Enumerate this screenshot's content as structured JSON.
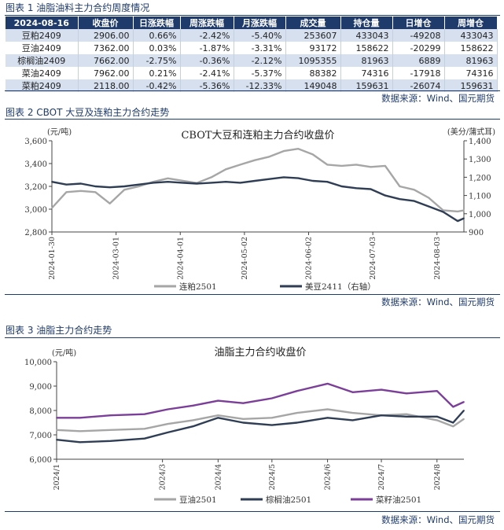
{
  "table1": {
    "caption": "图表 1 油脂油料主力合约周度情况",
    "headers": [
      "2024-08-16",
      "收盘价",
      "日涨跌幅",
      "周涨跌幅",
      "月涨跌幅",
      "成交量",
      "持仓量",
      "日增仓",
      "周增仓"
    ],
    "rows": [
      [
        "豆粕2409",
        "2906.00",
        "0.66%",
        "-2.42%",
        "-5.40%",
        "253607",
        "433043",
        "-49208",
        "433043"
      ],
      [
        "豆油2409",
        "7362.00",
        "0.03%",
        "-1.87%",
        "-3.31%",
        "93172",
        "158622",
        "-20299",
        "158622"
      ],
      [
        "棕榈油2409",
        "7662.00",
        "-2.75%",
        "-0.36%",
        "-2.12%",
        "1095355",
        "81963",
        "6889",
        "81963"
      ],
      [
        "菜油2409",
        "7962.00",
        "0.21%",
        "-2.41%",
        "-5.37%",
        "88382",
        "74316",
        "-17918",
        "74316"
      ],
      [
        "菜粕2409",
        "2118.00",
        "-0.42%",
        "-5.36%",
        "-12.33%",
        "149048",
        "159631",
        "-26074",
        "159631"
      ]
    ],
    "source": "数据来源：Wind、国元期货"
  },
  "chart2": {
    "caption": "图表 2 CBOT 大豆及连粕主力合约走势",
    "source": "数据来源：Wind、国元期货"
  },
  "chart3": {
    "caption": "图表 3 油脂主力合约走势",
    "source": "数据来源：Wind、国元期货"
  },
  "chart_data": [
    {
      "type": "line",
      "title": "CBOT大豆和连粕主力合约收盘价",
      "ylabel": "(元/吨)",
      "y2label": "(美分/蒲式耳)",
      "ylim": [
        2800,
        3600
      ],
      "y2lim": [
        900,
        1400
      ],
      "yticks": [
        "2,800",
        "3,000",
        "3,200",
        "3,400",
        "3,600"
      ],
      "y2ticks": [
        "900",
        "1,000",
        "1,100",
        "1,200",
        "1,300",
        "1,400"
      ],
      "xticks": [
        "2024-01-30",
        "2024-03-01",
        "2024-04-01",
        "2024-05-02",
        "2024-06-02",
        "2024-07-03",
        "2024-08-03"
      ],
      "x_range": [
        "2024-01-30",
        "2024-08-16"
      ],
      "grid": false,
      "legend": "bottom",
      "series": [
        {
          "name": "连粕2501",
          "axis": "left",
          "color": "#a6a6a6",
          "x": [
            "2024-01-30",
            "2024-02-06",
            "2024-02-13",
            "2024-02-20",
            "2024-02-27",
            "2024-03-05",
            "2024-03-12",
            "2024-03-19",
            "2024-03-26",
            "2024-04-02",
            "2024-04-09",
            "2024-04-16",
            "2024-04-23",
            "2024-04-30",
            "2024-05-07",
            "2024-05-14",
            "2024-05-21",
            "2024-05-28",
            "2024-06-04",
            "2024-06-11",
            "2024-06-18",
            "2024-06-25",
            "2024-07-02",
            "2024-07-09",
            "2024-07-16",
            "2024-07-23",
            "2024-07-30",
            "2024-08-06",
            "2024-08-13",
            "2024-08-16"
          ],
          "values": [
            3010,
            3150,
            3160,
            3150,
            3050,
            3170,
            3200,
            3240,
            3270,
            3250,
            3230,
            3280,
            3350,
            3390,
            3430,
            3460,
            3510,
            3530,
            3480,
            3390,
            3380,
            3390,
            3370,
            3380,
            3200,
            3170,
            3100,
            2990,
            2980,
            2990
          ]
        },
        {
          "name": "美豆2411（右轴）",
          "axis": "right",
          "color": "#2f3e55",
          "x": [
            "2024-01-30",
            "2024-02-06",
            "2024-02-13",
            "2024-02-20",
            "2024-02-27",
            "2024-03-05",
            "2024-03-12",
            "2024-03-19",
            "2024-03-26",
            "2024-04-02",
            "2024-04-09",
            "2024-04-16",
            "2024-04-23",
            "2024-04-30",
            "2024-05-07",
            "2024-05-14",
            "2024-05-21",
            "2024-05-28",
            "2024-06-04",
            "2024-06-11",
            "2024-06-18",
            "2024-06-25",
            "2024-07-02",
            "2024-07-09",
            "2024-07-16",
            "2024-07-23",
            "2024-07-30",
            "2024-08-06",
            "2024-08-13",
            "2024-08-16"
          ],
          "values": [
            1175,
            1160,
            1165,
            1150,
            1145,
            1150,
            1160,
            1170,
            1175,
            1170,
            1165,
            1170,
            1175,
            1170,
            1180,
            1190,
            1200,
            1195,
            1180,
            1175,
            1150,
            1140,
            1135,
            1100,
            1080,
            1070,
            1040,
            1010,
            960,
            975
          ]
        }
      ]
    },
    {
      "type": "line",
      "title": "油脂主力合约收盘价",
      "ylabel": "(元/吨)",
      "ylim": [
        6000,
        10000
      ],
      "yticks": [
        "6,000",
        "7,000",
        "8,000",
        "9,000",
        "10,000"
      ],
      "xticks": [
        "2024/1",
        "2024/3",
        "2024/4",
        "2024/5",
        "2024/6",
        "2024/7",
        "2024/8"
      ],
      "x_range": [
        "2024-01-02",
        "2024-08-16"
      ],
      "grid": false,
      "legend": "bottom",
      "series": [
        {
          "name": "豆油2501",
          "color": "#a6a6a6",
          "x": [
            "2024-01-02",
            "2024-01-15",
            "2024-02-01",
            "2024-02-20",
            "2024-03-04",
            "2024-03-18",
            "2024-04-01",
            "2024-04-15",
            "2024-05-01",
            "2024-05-15",
            "2024-06-01",
            "2024-06-15",
            "2024-07-01",
            "2024-07-15",
            "2024-08-01",
            "2024-08-10",
            "2024-08-16"
          ],
          "values": [
            7200,
            7150,
            7200,
            7250,
            7450,
            7600,
            7800,
            7650,
            7700,
            7900,
            8050,
            7900,
            7800,
            7850,
            7600,
            7350,
            7650
          ]
        },
        {
          "name": "棕榈油2501",
          "color": "#2f3e55",
          "x": [
            "2024-01-02",
            "2024-01-15",
            "2024-02-01",
            "2024-02-20",
            "2024-03-04",
            "2024-03-18",
            "2024-04-01",
            "2024-04-15",
            "2024-05-01",
            "2024-05-15",
            "2024-06-01",
            "2024-06-15",
            "2024-07-01",
            "2024-07-15",
            "2024-08-01",
            "2024-08-10",
            "2024-08-16"
          ],
          "values": [
            6800,
            6700,
            6750,
            6850,
            7100,
            7350,
            7700,
            7500,
            7400,
            7500,
            7700,
            7600,
            7800,
            7750,
            7750,
            7500,
            8000
          ]
        },
        {
          "name": "菜籽油2501",
          "color": "#7b3f99",
          "x": [
            "2024-01-02",
            "2024-01-15",
            "2024-02-01",
            "2024-02-20",
            "2024-03-04",
            "2024-03-18",
            "2024-04-01",
            "2024-04-15",
            "2024-05-01",
            "2024-05-15",
            "2024-06-01",
            "2024-06-15",
            "2024-07-01",
            "2024-07-15",
            "2024-08-01",
            "2024-08-10",
            "2024-08-16"
          ],
          "values": [
            7700,
            7700,
            7800,
            7850,
            8050,
            8200,
            8400,
            8300,
            8500,
            8800,
            9100,
            8750,
            8850,
            8700,
            8800,
            8150,
            8350
          ]
        }
      ]
    }
  ]
}
